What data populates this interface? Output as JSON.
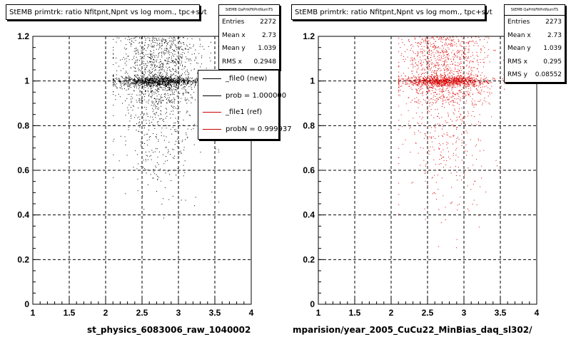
{
  "chart_data": [
    {
      "type": "scatter",
      "title": "StEMB primtrk: ratio Nfitpnt,Npnt vs log mom., tpc+svt",
      "xlabel": "st_physics_6083006_raw_1040002",
      "ylabel": "",
      "xlim": [
        1,
        4
      ],
      "ylim": [
        0,
        1.2
      ],
      "x_ticks": [
        "1",
        "1.5",
        "2",
        "2.5",
        "3",
        "3.5",
        "4"
      ],
      "y_ticks": [
        "0",
        "0.2",
        "0.4",
        "0.6",
        "0.8",
        "1",
        "1.2"
      ],
      "grid": true,
      "marker_color": "#000000",
      "stats": {
        "header": "StEMB QaPrtkFitPntNumTS",
        "entries_label": "Entries",
        "entries": "2272",
        "meanx_label": "Mean x",
        "meanx": "2.73",
        "meany_label": "Mean y",
        "meany": "1.039",
        "rmsx_label": "RMS x",
        "rmsx": "0.2948"
      },
      "legend": [
        {
          "label": "_file0 (new)",
          "color": "#000000"
        },
        {
          "label": "prob = 1.000000",
          "color": "#000000"
        },
        {
          "label": "_file1 (ref)",
          "color": "#cc0000"
        },
        {
          "label": "probN = 0.999937",
          "color": "#cc0000"
        }
      ],
      "distribution": {
        "points": 2272,
        "x_mean": 2.73,
        "x_rms": 0.2948,
        "y_main": 1.0,
        "y_main_spread": 0.012,
        "y_main_fraction": 0.42,
        "y_band_fraction": 0.45,
        "y_band_range": [
          0.9,
          1.2
        ],
        "sparse_fraction": 0.13,
        "sparse_range": [
          0.3,
          0.9
        ],
        "x_range": [
          2.1,
          3.55
        ]
      }
    },
    {
      "type": "scatter",
      "title": "StEMB primtrk: ratio Nfitpnt,Npnt vs log mom., tpc+svt",
      "xlabel": "mparision/year_2005_CuCu22_MinBias_daq_sl302/",
      "ylabel": "",
      "xlim": [
        1,
        4
      ],
      "ylim": [
        0,
        1.2
      ],
      "x_ticks": [
        "1",
        "1.5",
        "2",
        "2.5",
        "3",
        "3.5",
        "4"
      ],
      "y_ticks": [
        "0",
        "0.2",
        "0.4",
        "0.6",
        "0.8",
        "1",
        "1.2"
      ],
      "grid": true,
      "marker_color": "#dd0000",
      "stats": {
        "header": "StEMB QaPrtkFitPntNumTS",
        "entries_label": "Entries",
        "entries": "2273",
        "meanx_label": "Mean x",
        "meanx": "2.73",
        "meany_label": "Mean y",
        "meany": "1.039",
        "rmsx_label": "RMS x",
        "rmsx": "0.295",
        "rmsy_label": "RMS y",
        "rmsy": "0.08552"
      },
      "distribution": {
        "points": 2273,
        "x_mean": 2.73,
        "x_rms": 0.295,
        "y_main": 1.0,
        "y_main_spread": 0.012,
        "y_main_fraction": 0.42,
        "y_band_fraction": 0.45,
        "y_band_range": [
          0.9,
          1.2
        ],
        "sparse_fraction": 0.13,
        "sparse_range": [
          0.2,
          0.9
        ],
        "x_range": [
          2.1,
          3.55
        ]
      }
    }
  ]
}
